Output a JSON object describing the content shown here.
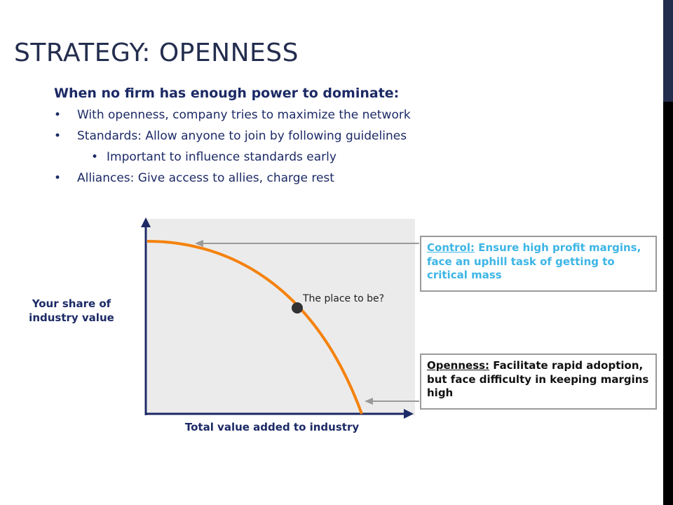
{
  "slide": {
    "title": "STRATEGY: OPENNESS",
    "subheading": "When no firm has enough power to dominate:",
    "bullets": [
      {
        "text": "With openness, company tries to maximize the network",
        "level": 1
      },
      {
        "text": "Standards: Allow anyone to join by following guidelines",
        "level": 1
      },
      {
        "text": "Important to influence standards early",
        "level": 2
      },
      {
        "text": "Alliances: Give access to allies, charge rest",
        "level": 1
      }
    ],
    "bullet_glyph": "•"
  },
  "diagram": {
    "y_axis_label": "Your share of industry value",
    "x_axis_label": "Total value added to industry",
    "point_label": "The place to be?",
    "callouts": {
      "control": {
        "heading": "Control:",
        "body": " Ensure high profit margins, face an uphill task of getting to critical mass"
      },
      "openness": {
        "heading": "Openness:",
        "body": " Facilitate rapid adoption, but face difficulty in keeping margins high"
      }
    }
  },
  "colors": {
    "title": "#232d4e",
    "body_text": "#1c2a66",
    "curve": "#f5820d",
    "plot_background": "#ebebeb",
    "control_text": "#3db5e6",
    "callout_border": "#9a9a9a",
    "arrow": "#9a9a9a",
    "side_bar_top": "#232d4e",
    "side_bar_bottom": "#000000"
  }
}
